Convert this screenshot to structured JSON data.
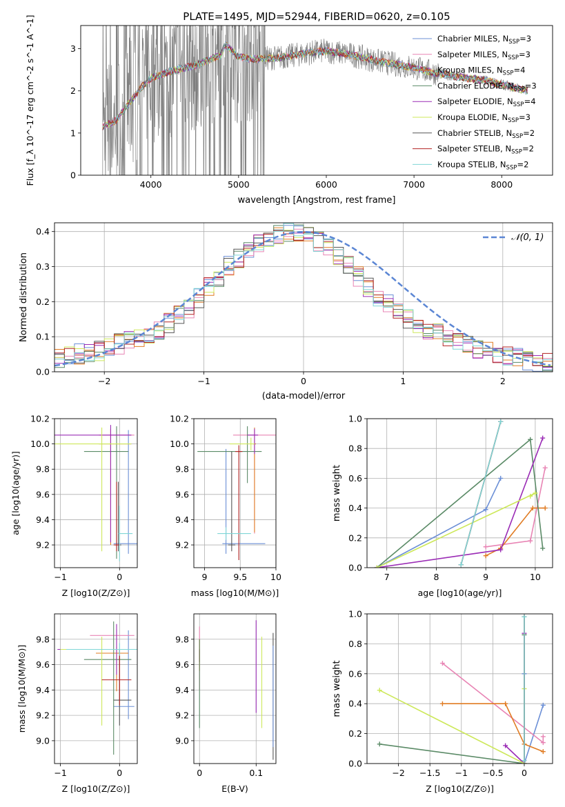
{
  "colors": {
    "Chabrier MILES": "#6b8fd6",
    "Salpeter MILES": "#e884b4",
    "Kroupa MILES": "#e07b22",
    "Chabrier ELODIE": "#5a8a66",
    "Salpeter ELODIE": "#9a2bb5",
    "Kroupa ELODIE": "#cde85a",
    "Chabrier STELIB": "#555555",
    "Salpeter STELIB": "#b22222",
    "Kroupa STELIB": "#7fd6d6",
    "normal_curve": "#5b86d4",
    "data_gray": "#7f7f7f",
    "grid": "#b0b0b0"
  },
  "chart_data": [
    {
      "id": "spectrum",
      "type": "line",
      "title": "PLATE=1495, MJD=52944, FIBERID=0620, z=0.105",
      "xlabel": "wavelength [Angstrom, rest frame]",
      "ylabel": "Flux [f_λ 10^-17 erg cm^-2 s^-1 A^-1]",
      "xlim": [
        3200,
        8580
      ],
      "ylim": [
        0,
        3.55
      ],
      "xticks": [
        4000,
        5000,
        6000,
        7000,
        8000
      ],
      "yticks": [
        0,
        1,
        2,
        3
      ],
      "grid": false,
      "legend_position": "right",
      "continuum_x": [
        3450,
        3600,
        3750,
        3900,
        4000,
        4200,
        4500,
        4800,
        4850,
        5000,
        5200,
        5500,
        5800,
        6000,
        6300,
        6600,
        7000,
        7300,
        7600,
        7800,
        8000,
        8300
      ],
      "continuum_y": [
        1.15,
        1.3,
        1.7,
        2.1,
        2.3,
        2.45,
        2.6,
        2.85,
        3.1,
        2.8,
        2.75,
        2.8,
        2.9,
        2.95,
        2.85,
        2.7,
        2.55,
        2.4,
        2.3,
        2.25,
        2.15,
        2.0
      ],
      "legend": [
        {
          "label": "Chabrier MILES, N",
          "sub": "SSP",
          "suffix": "=3",
          "color": "#6b8fd6"
        },
        {
          "label": "Salpeter MILES, N",
          "sub": "SSP",
          "suffix": "=3",
          "color": "#e884b4"
        },
        {
          "label": "Kroupa MILES, N",
          "sub": "SSP",
          "suffix": "=4",
          "color": "#e07b22"
        },
        {
          "label": "Chabrier ELODIE, N",
          "sub": "SSP",
          "suffix": "=3",
          "color": "#5a8a66"
        },
        {
          "label": "Salpeter ELODIE, N",
          "sub": "SSP",
          "suffix": "=4",
          "color": "#9a2bb5"
        },
        {
          "label": "Kroupa ELODIE, N",
          "sub": "SSP",
          "suffix": "=3",
          "color": "#cde85a"
        },
        {
          "label": "Chabrier STELIB, N",
          "sub": "SSP",
          "suffix": "=2",
          "color": "#555555"
        },
        {
          "label": "Salpeter STELIB, N",
          "sub": "SSP",
          "suffix": "=2",
          "color": "#b22222"
        },
        {
          "label": "Kroupa STELIB, N",
          "sub": "SSP",
          "suffix": "=2",
          "color": "#7fd6d6"
        }
      ]
    },
    {
      "id": "residuals",
      "type": "histogram",
      "xlabel": "(data-model)/error",
      "ylabel": "Normed distribution",
      "xlim": [
        -2.5,
        2.5
      ],
      "ylim": [
        0,
        0.425
      ],
      "xticks": [
        -2,
        -1,
        0,
        1,
        2
      ],
      "yticks": [
        0.0,
        0.1,
        0.2,
        0.3,
        0.4
      ],
      "grid": true,
      "bin_width": 0.1,
      "envelope": [
        0.04,
        0.045,
        0.05,
        0.055,
        0.06,
        0.065,
        0.08,
        0.09,
        0.1,
        0.11,
        0.12,
        0.14,
        0.16,
        0.18,
        0.21,
        0.24,
        0.27,
        0.3,
        0.32,
        0.35,
        0.37,
        0.38,
        0.39,
        0.4,
        0.395,
        0.385,
        0.37,
        0.35,
        0.33,
        0.3,
        0.27,
        0.24,
        0.21,
        0.19,
        0.17,
        0.15,
        0.13,
        0.12,
        0.11,
        0.1,
        0.085,
        0.075,
        0.065,
        0.055,
        0.05,
        0.045,
        0.04,
        0.035,
        0.03,
        0.03
      ],
      "curve": {
        "label": "𝒩(0, 1)",
        "mean": 0,
        "sigma": 1
      }
    },
    {
      "id": "age_vs_Z",
      "type": "errorbar",
      "xlabel": "Z [log10(Z/Z⊙)]",
      "ylabel": "age [log10(age/yr)]",
      "xlim": [
        -1.1,
        0.3
      ],
      "ylim": [
        9.02,
        10.2
      ],
      "xticks": [
        -1,
        0
      ],
      "yticks": [
        9.2,
        9.4,
        9.6,
        9.8,
        10.0,
        10.2
      ],
      "grid": true,
      "points": [
        {
          "model": "Chabrier MILES",
          "x": 0.15,
          "y": 9.21,
          "xerr": [
            0.25,
            0.15
          ],
          "yerr": [
            0.08,
            0.9
          ]
        },
        {
          "model": "Salpeter MILES",
          "x": -0.05,
          "y": 10.07,
          "xerr": [
            0.3,
            0.3
          ],
          "yerr": [
            0.1,
            0.05
          ]
        },
        {
          "model": "Kroupa MILES",
          "x": -0.15,
          "y": 10.0,
          "xerr": [
            0.2,
            0.35
          ],
          "yerr": [
            0.8,
            0.12
          ]
        },
        {
          "model": "Chabrier ELODIE",
          "x": -0.05,
          "y": 9.94,
          "xerr": [
            0.55,
            0.2
          ],
          "yerr": [
            0.85,
            0.2
          ]
        },
        {
          "model": "Salpeter ELODIE",
          "x": -0.15,
          "y": 10.07,
          "xerr": [
            0.95,
            0.35
          ],
          "yerr": [
            0.85,
            0.08
          ]
        },
        {
          "model": "Kroupa ELODIE",
          "x": -0.3,
          "y": 10.0,
          "xerr": [
            0.8,
            0.5
          ],
          "yerr": [
            0.85,
            0.13
          ]
        },
        {
          "model": "Chabrier STELIB",
          "x": -0.02,
          "y": 9.2,
          "xerr": [
            0.05,
            0.05
          ],
          "yerr": [
            0.05,
            0.5
          ]
        },
        {
          "model": "Salpeter STELIB",
          "x": -0.05,
          "y": 9.2,
          "xerr": [
            0.05,
            0.05
          ],
          "yerr": [
            0.05,
            0.5
          ]
        },
        {
          "model": "Kroupa STELIB",
          "x": 0.0,
          "y": 9.29,
          "xerr": [
            0.02,
            0.22
          ],
          "yerr": [
            0.22,
            0.22
          ]
        }
      ]
    },
    {
      "id": "age_vs_mass",
      "type": "errorbar",
      "xlabel": "mass [log10(M/M⊙)]",
      "xlim": [
        8.85,
        10.0
      ],
      "ylim": [
        9.02,
        10.2
      ],
      "xticks": [
        9.0,
        9.5,
        10.0
      ],
      "yticks": [
        9.2,
        9.4,
        9.6,
        9.8,
        10.0,
        10.2
      ],
      "grid": true,
      "points": [
        {
          "model": "Chabrier MILES",
          "x": 9.3,
          "y": 9.21,
          "xerr": [
            0.05,
            0.55
          ],
          "yerr": [
            0.08,
            0.75
          ]
        },
        {
          "model": "Salpeter MILES",
          "x": 9.7,
          "y": 10.07,
          "xerr": [
            0.3,
            0.3
          ],
          "yerr": [
            0.78,
            0.05
          ]
        },
        {
          "model": "Kroupa MILES",
          "x": 9.7,
          "y": 10.0,
          "xerr": [
            0.02,
            0.02
          ],
          "yerr": [
            0.7,
            0.13
          ]
        },
        {
          "model": "Chabrier ELODIE",
          "x": 9.6,
          "y": 9.94,
          "xerr": [
            0.7,
            0.2
          ],
          "yerr": [
            0.25,
            0.2
          ]
        },
        {
          "model": "Salpeter ELODIE",
          "x": 9.7,
          "y": 10.07,
          "xerr": [
            0.1,
            0.05
          ],
          "yerr": [
            0.15,
            0.05
          ]
        },
        {
          "model": "Kroupa ELODIE",
          "x": 9.65,
          "y": 10.0,
          "xerr": [
            0.3,
            0.05
          ],
          "yerr": [
            0.05,
            0.05
          ]
        },
        {
          "model": "Chabrier STELIB",
          "x": 9.38,
          "y": 9.2,
          "xerr": [
            0.05,
            0.05
          ],
          "yerr": [
            0.05,
            0.74
          ]
        },
        {
          "model": "Salpeter STELIB",
          "x": 9.48,
          "y": 9.94,
          "xerr": [
            0.05,
            0.05
          ],
          "yerr": [
            0.86,
            0.05
          ]
        },
        {
          "model": "Kroupa STELIB",
          "x": 9.3,
          "y": 9.29,
          "xerr": [
            0.12,
            0.35
          ],
          "yerr": [
            0.05,
            0.05
          ]
        }
      ]
    },
    {
      "id": "weight_vs_age",
      "type": "line",
      "xlabel": "age  [log10(age/yr)]",
      "ylabel": "mass weight",
      "xlim": [
        6.6,
        10.35
      ],
      "ylim": [
        0,
        1.0
      ],
      "xticks": [
        7,
        8,
        9,
        10
      ],
      "yticks": [
        0.0,
        0.2,
        0.4,
        0.6,
        0.8,
        1.0
      ],
      "grid": true,
      "series": [
        {
          "model": "Chabrier MILES",
          "x": [
            6.8,
            9.0,
            9.3
          ],
          "y": [
            0.0,
            0.39,
            0.6
          ]
        },
        {
          "model": "Salpeter MILES",
          "x": [
            9.0,
            9.9,
            10.2
          ],
          "y": [
            0.14,
            0.18,
            0.67
          ]
        },
        {
          "model": "Kroupa MILES",
          "x": [
            9.0,
            9.3,
            9.95,
            10.2
          ],
          "y": [
            0.08,
            0.13,
            0.4,
            0.4
          ]
        },
        {
          "model": "Chabrier ELODIE",
          "x": [
            6.8,
            9.9,
            10.15
          ],
          "y": [
            0.0,
            0.86,
            0.13
          ]
        },
        {
          "model": "Salpeter ELODIE",
          "x": [
            6.8,
            9.3,
            10.15
          ],
          "y": [
            0.0,
            0.12,
            0.87
          ]
        },
        {
          "model": "Kroupa ELODIE",
          "x": [
            6.8,
            10.0,
            9.9
          ],
          "y": [
            0.0,
            0.5,
            0.48
          ]
        },
        {
          "model": "Chabrier STELIB",
          "x": [
            8.5,
            9.3
          ],
          "y": [
            0.02,
            0.98
          ]
        },
        {
          "model": "Salpeter STELIB",
          "x": [
            8.5,
            9.3
          ],
          "y": [
            0.02,
            0.98
          ]
        },
        {
          "model": "Kroupa STELIB",
          "x": [
            8.5,
            9.3
          ],
          "y": [
            0.02,
            0.98
          ]
        }
      ]
    },
    {
      "id": "mass_vs_Z",
      "type": "errorbar",
      "xlabel": "Z [log10(Z/Z⊙)]",
      "ylabel": "mass [log10(M/M⊙)]",
      "xlim": [
        -1.1,
        0.3
      ],
      "ylim": [
        8.82,
        10.0
      ],
      "xticks": [
        -1,
        0
      ],
      "yticks": [
        9.0,
        9.2,
        9.4,
        9.6,
        9.8
      ],
      "grid": true,
      "points": [
        {
          "model": "Chabrier MILES",
          "x": 0.15,
          "y": 9.27,
          "xerr": [
            0.25,
            0.1
          ],
          "yerr": [
            0.1,
            0.6
          ]
        },
        {
          "model": "Salpeter MILES",
          "x": -0.05,
          "y": 9.83,
          "xerr": [
            0.45,
            0.3
          ],
          "yerr": [
            0.1,
            0.05
          ]
        },
        {
          "model": "Kroupa MILES",
          "x": -0.05,
          "y": 9.69,
          "xerr": [
            0.35,
            0.2
          ],
          "yerr": [
            0.3,
            0.05
          ]
        },
        {
          "model": "Chabrier ELODIE",
          "x": -0.1,
          "y": 9.64,
          "xerr": [
            0.5,
            0.3
          ],
          "yerr": [
            0.75,
            0.3
          ]
        },
        {
          "model": "Salpeter ELODIE",
          "x": -0.05,
          "y": 9.72,
          "xerr": [
            1.0,
            0.3
          ],
          "yerr": [
            0.2,
            0.2
          ]
        },
        {
          "model": "Kroupa ELODIE",
          "x": -0.3,
          "y": 9.72,
          "xerr": [
            0.7,
            0.5
          ],
          "yerr": [
            0.6,
            0.1
          ]
        },
        {
          "model": "Chabrier STELIB",
          "x": 0.0,
          "y": 9.32,
          "xerr": [
            0.1,
            0.2
          ],
          "yerr": [
            0.2,
            0.4
          ]
        },
        {
          "model": "Salpeter STELIB",
          "x": 0.0,
          "y": 9.48,
          "xerr": [
            0.3,
            0.2
          ],
          "yerr": [
            0.2,
            0.2
          ]
        },
        {
          "model": "Kroupa STELIB",
          "x": 0.0,
          "y": 9.72,
          "xerr": [
            0.9,
            0.3
          ],
          "yerr": [
            0.05,
            0.05
          ]
        }
      ]
    },
    {
      "id": "mass_vs_ebv",
      "type": "errorbar",
      "xlabel": "E(B-V)",
      "xlim": [
        -0.01,
        0.135
      ],
      "ylim": [
        8.82,
        10.0
      ],
      "xticks": [
        0.0,
        0.1
      ],
      "yticks": [
        9.0,
        9.2,
        9.4,
        9.6,
        9.8
      ],
      "grid": true,
      "points": [
        {
          "model": "Salpeter MILES",
          "x": 0.0,
          "y": 9.7,
          "xerr": [
            0,
            0
          ],
          "yerr": [
            0.3,
            0.2
          ]
        },
        {
          "model": "Kroupa MILES",
          "x": 0.0,
          "y": 9.7,
          "xerr": [
            0,
            0
          ],
          "yerr": [
            0.15,
            0.1
          ]
        },
        {
          "model": "Salpeter STELIB",
          "x": 0.0,
          "y": 9.67,
          "xerr": [
            0,
            0
          ],
          "yerr": [
            0.05,
            0.05
          ]
        },
        {
          "model": "Chabrier ELODIE",
          "x": 0.0,
          "y": 9.5,
          "xerr": [
            0,
            0
          ],
          "yerr": [
            0.4,
            0.3
          ]
        },
        {
          "model": "Salpeter ELODIE",
          "x": 0.1,
          "y": 9.6,
          "xerr": [
            0,
            0
          ],
          "yerr": [
            0.38,
            0.35
          ]
        },
        {
          "model": "Kroupa ELODIE",
          "x": 0.11,
          "y": 9.5,
          "xerr": [
            0,
            0
          ],
          "yerr": [
            0.4,
            0.32
          ]
        },
        {
          "model": "Chabrier STELIB",
          "x": 0.13,
          "y": 9.35,
          "xerr": [
            0,
            0
          ],
          "yerr": [
            0.5,
            0.5
          ]
        },
        {
          "model": "Chabrier MILES",
          "x": 0.13,
          "y": 9.35,
          "xerr": [
            0,
            0
          ],
          "yerr": [
            0.4,
            0.4
          ]
        }
      ]
    },
    {
      "id": "weight_vs_Z",
      "type": "line",
      "xlabel": "Z [log10(Z/Z⊙)]",
      "ylabel": "mass weight",
      "xlim": [
        -2.5,
        0.45
      ],
      "ylim": [
        0,
        1.0
      ],
      "xticks": [
        -2.0,
        -1.5,
        -1.0,
        -0.5,
        0.0
      ],
      "yticks": [
        0.0,
        0.2,
        0.4,
        0.6,
        0.8,
        1.0
      ],
      "grid": true,
      "series": [
        {
          "model": "Chabrier MILES",
          "x": [
            0.0,
            0.0,
            0.3
          ],
          "y": [
            0.6,
            0.0,
            0.39
          ]
        },
        {
          "model": "Salpeter MILES",
          "x": [
            -1.3,
            0.3,
            0.3
          ],
          "y": [
            0.67,
            0.14,
            0.18
          ]
        },
        {
          "model": "Kroupa MILES",
          "x": [
            -1.3,
            -0.3,
            0.0,
            0.3
          ],
          "y": [
            0.4,
            0.4,
            0.13,
            0.08
          ]
        },
        {
          "model": "Chabrier ELODIE",
          "x": [
            -2.3,
            0.0,
            0.0
          ],
          "y": [
            0.13,
            0.0,
            0.86
          ]
        },
        {
          "model": "Salpeter ELODIE",
          "x": [
            -0.3,
            0.0,
            0.0
          ],
          "y": [
            0.12,
            0.0,
            0.87
          ]
        },
        {
          "model": "Kroupa ELODIE",
          "x": [
            -2.3,
            0.0,
            0.0
          ],
          "y": [
            0.49,
            0.0,
            0.5
          ]
        },
        {
          "model": "Chabrier STELIB",
          "x": [
            0.0,
            0.0
          ],
          "y": [
            0.02,
            0.98
          ]
        },
        {
          "model": "Salpeter STELIB",
          "x": [
            0.0,
            0.0
          ],
          "y": [
            0.02,
            0.98
          ]
        },
        {
          "model": "Kroupa STELIB",
          "x": [
            0.0,
            0.0
          ],
          "y": [
            0.02,
            0.98
          ]
        }
      ]
    }
  ]
}
